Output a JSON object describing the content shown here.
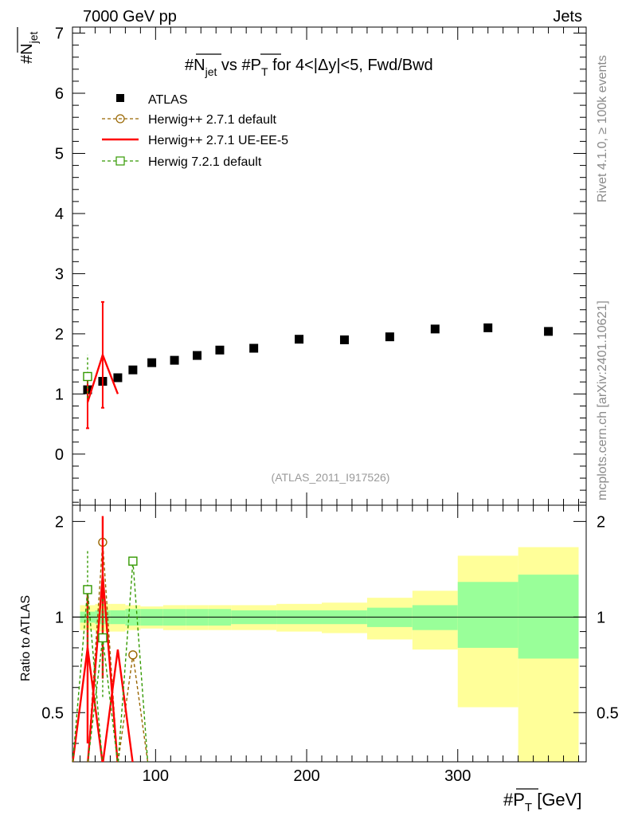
{
  "header": {
    "left": "7000 GeV pp",
    "right": "Jets",
    "side_top": "Rivet 4.1.0, ≥ 100k events",
    "side_bottom": "mcplots.cern.ch [arXiv:2401.10621]"
  },
  "chart_data": [
    {
      "panel": "main",
      "type": "scatter",
      "title": "#Njet vs #PT for 4<|Δy|<5, Fwd/Bwd",
      "title_parts": {
        "a": "#N",
        "a_sub": "jet",
        "b": " vs #P",
        "b_sub": "T",
        "c": " for 4<|Δy|<5, Fwd/Bwd"
      },
      "ylabel": "#Njet",
      "ylabel_parts": {
        "main": "#N",
        "sub": "jet"
      },
      "ylim": [
        -0.85,
        7.1
      ],
      "yticks": [
        0,
        1,
        2,
        3,
        4,
        5,
        6,
        7
      ],
      "tick_labels": [
        "0",
        "1",
        "2",
        "3",
        "4",
        "5",
        "6",
        "7"
      ],
      "watermark": "(ATLAS_2011_I917526)",
      "legend_position": "top-left",
      "series": [
        {
          "name": "ATLAS",
          "style": "marker",
          "x": [
            55,
            65,
            75,
            85,
            97.5,
            112.5,
            127.5,
            142.5,
            165,
            195,
            225,
            255,
            285,
            320,
            360
          ],
          "y": [
            1.07,
            1.21,
            1.27,
            1.4,
            1.52,
            1.56,
            1.64,
            1.73,
            1.76,
            1.91,
            1.9,
            1.95,
            2.08,
            2.1,
            2.04
          ]
        },
        {
          "name": "Herwig++ 2.7.1 default",
          "style": "dashed-circle",
          "x": [],
          "y": []
        },
        {
          "name": "Herwig++ 2.7.1 UE-EE-5",
          "style": "solid",
          "x": [
            55,
            65,
            75
          ],
          "y": [
            0.86,
            1.65,
            1.0
          ],
          "err": [
            0.43,
            0.88,
            0
          ]
        },
        {
          "name": "Herwig 7.2.1 default",
          "style": "dashed-square",
          "x": [
            55
          ],
          "y": [
            1.29
          ],
          "err": [
            0.36
          ]
        }
      ]
    },
    {
      "panel": "ratio",
      "type": "line",
      "ylabel": "Ratio to ATLAS",
      "xlabel": "#PT [GeV]",
      "xlabel_parts": {
        "main": "#P",
        "sub": "T",
        "tail": " [GeV]"
      },
      "xlim": [
        45,
        385
      ],
      "ylim": [
        0.35,
        2.25
      ],
      "yticks": [
        0.5,
        1,
        2
      ],
      "ytick_labels": [
        "0.5",
        "1",
        "2"
      ],
      "xticks": [
        100,
        200,
        300
      ],
      "xtick_labels": [
        "100",
        "200",
        "300"
      ],
      "bands": {
        "bins": [
          [
            50,
            60
          ],
          [
            60,
            70
          ],
          [
            70,
            80
          ],
          [
            80,
            90
          ],
          [
            90,
            105
          ],
          [
            105,
            120
          ],
          [
            120,
            135
          ],
          [
            135,
            150
          ],
          [
            150,
            180
          ],
          [
            180,
            210
          ],
          [
            210,
            240
          ],
          [
            240,
            270
          ],
          [
            270,
            300
          ],
          [
            300,
            340
          ],
          [
            340,
            380
          ]
        ],
        "inner_low": [
          0.96,
          0.95,
          0.95,
          0.94,
          0.94,
          0.94,
          0.94,
          0.94,
          0.95,
          0.95,
          0.95,
          0.93,
          0.91,
          0.8,
          0.74
        ],
        "inner_high": [
          1.04,
          1.05,
          1.05,
          1.06,
          1.06,
          1.06,
          1.06,
          1.06,
          1.05,
          1.05,
          1.05,
          1.07,
          1.09,
          1.29,
          1.36
        ],
        "outer_low": [
          0.91,
          0.9,
          0.9,
          0.91,
          0.92,
          0.91,
          0.91,
          0.91,
          0.91,
          0.9,
          0.89,
          0.85,
          0.79,
          0.52,
          0.34
        ],
        "outer_high": [
          1.09,
          1.1,
          1.1,
          1.09,
          1.08,
          1.09,
          1.09,
          1.09,
          1.09,
          1.1,
          1.11,
          1.15,
          1.21,
          1.56,
          1.66
        ]
      },
      "series": [
        {
          "name": "Herwig++ 2.7.1 default",
          "x": [
            65,
            85
          ],
          "y": [
            1.72,
            0.76
          ],
          "err": [
            0.33,
            0.0
          ]
        },
        {
          "name": "Herwig++ 2.7.1 UE-EE-5",
          "x": [
            55,
            65,
            75
          ],
          "y": [
            0.8,
            1.36,
            0.79
          ],
          "err": [
            0.4,
            0.72,
            0
          ]
        },
        {
          "name": "Herwig 7.2.1 default",
          "x": [
            55,
            65,
            85
          ],
          "y": [
            1.22,
            0.86,
            1.5
          ],
          "err": [
            0.4,
            0.3,
            0.0
          ]
        }
      ]
    }
  ],
  "colors": {
    "data": "#000000",
    "herwigpp_default": "#996600",
    "herwigpp_ueee5": "#ff0000",
    "herwig7": "#339900",
    "band_inner": "#99ff99",
    "band_outer": "#ffff99",
    "side_text": "#8a8a8a"
  }
}
